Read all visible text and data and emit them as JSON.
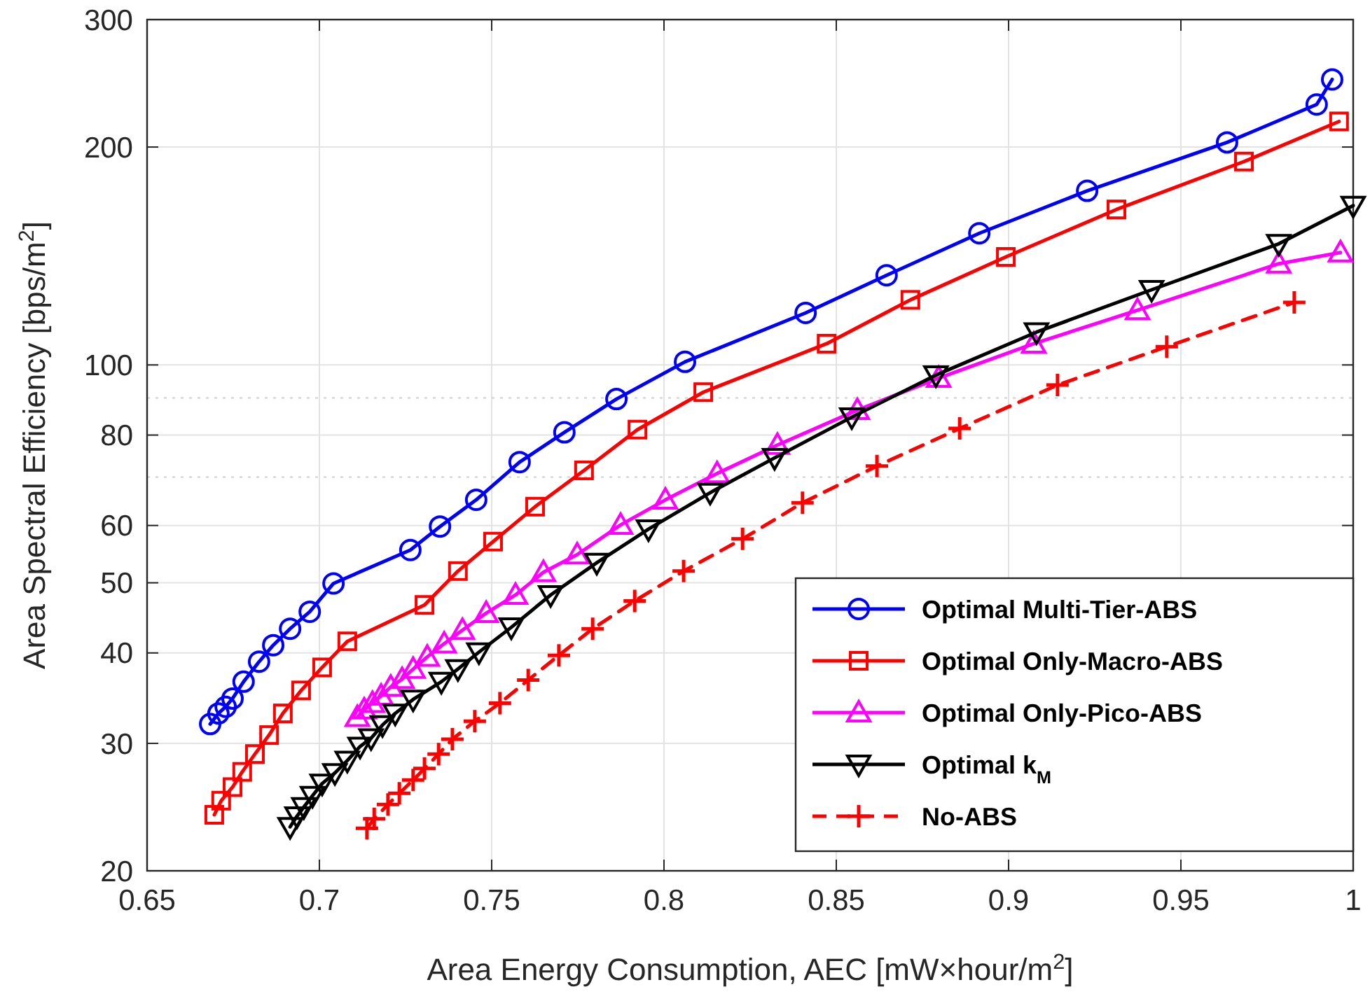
{
  "chart_data": {
    "type": "line",
    "xlabel": "Area Energy Consumption, AEC [mW×hour/m$^{2}$]",
    "ylabel": "Area Spectral Efficiency [bps/m$^{2}$]",
    "xlim": [
      0.65,
      1
    ],
    "xticks": [
      0.65,
      0.7,
      0.75,
      0.8,
      0.85,
      0.9,
      0.95,
      1
    ],
    "ylim": [
      20,
      300
    ],
    "yticks": [
      20,
      30,
      40,
      50,
      60,
      80,
      100,
      200,
      300
    ],
    "log": "y",
    "grid": true,
    "legend": "bottom right",
    "line_style": "solid",
    "ref_lines": [
      {
        "axis": "y",
        "value": 70,
        "color": "#d0d0d0",
        "line_style": "dotted"
      },
      {
        "axis": "y",
        "value": 90,
        "color": "#d0d0d0",
        "line_style": "dotted"
      }
    ],
    "series": [
      {
        "name": "Optimal Multi-Tier-ABS",
        "color": "#0000ff",
        "marker": "circle",
        "x": [
          0.6683,
          0.6707,
          0.6728,
          0.6748,
          0.678,
          0.6825,
          0.6866,
          0.6915,
          0.6972,
          0.7041,
          0.7264,
          0.735,
          0.7455,
          0.7581,
          0.7711,
          0.7862,
          0.8061,
          0.8411,
          0.8646,
          0.8915,
          0.9228,
          0.9634,
          0.9894,
          0.9939
        ],
        "values": [
          31.9,
          33.0,
          33.7,
          34.6,
          36.5,
          38.9,
          41.0,
          43.2,
          45.6,
          49.9,
          55.5,
          59.8,
          65.1,
          73.4,
          80.7,
          89.7,
          101,
          118,
          133,
          152,
          174,
          203,
          229,
          248
        ]
      },
      {
        "name": "Optimal Only-Macro-ABS",
        "color": "#ff0000",
        "marker": "square",
        "x": [
          0.6695,
          0.6715,
          0.6748,
          0.6776,
          0.6813,
          0.6854,
          0.6894,
          0.6947,
          0.7008,
          0.7081,
          0.7305,
          0.7402,
          0.7504,
          0.7626,
          0.7768,
          0.7923,
          0.8114,
          0.8472,
          0.8715,
          0.8992,
          0.9313,
          0.9683,
          0.9959
        ],
        "values": [
          23.9,
          25.0,
          26.1,
          27.4,
          29.0,
          30.8,
          33.0,
          35.5,
          38.2,
          41.5,
          46.6,
          51.9,
          57.0,
          63.7,
          71.5,
          81.4,
          91.7,
          107,
          123,
          141,
          164,
          191,
          217
        ]
      },
      {
        "name": "Optimal Only-Pico-ABS",
        "color": "#ff00ff",
        "marker": "triangle",
        "x": [
          0.711,
          0.713,
          0.7154,
          0.7179,
          0.7207,
          0.724,
          0.7272,
          0.7313,
          0.7362,
          0.7415,
          0.7484,
          0.7569,
          0.765,
          0.7748,
          0.7874,
          0.8004,
          0.8154,
          0.8329,
          0.8561,
          0.8797,
          0.9073,
          0.9374,
          0.9784,
          0.9963
        ],
        "values": [
          32.6,
          33.4,
          34.1,
          34.9,
          35.9,
          36.8,
          38.0,
          39.5,
          41.2,
          43.0,
          45.4,
          48.1,
          51.7,
          54.7,
          60.1,
          65.1,
          70.8,
          77.5,
          86.6,
          95.9,
          107,
          119,
          138,
          143
        ]
      },
      {
        "name": "Optimal k$_{M}$",
        "color": "#000000",
        "marker": "triangle-down",
        "x": [
          0.6915,
          0.6935,
          0.6955,
          0.698,
          0.7008,
          0.7045,
          0.7081,
          0.7118,
          0.715,
          0.7183,
          0.722,
          0.7272,
          0.7354,
          0.7402,
          0.7463,
          0.7557,
          0.7671,
          0.7805,
          0.7955,
          0.8134,
          0.8321,
          0.8545,
          0.8789,
          0.9081,
          0.9415,
          0.9784,
          1.0
        ],
        "values": [
          23.0,
          23.8,
          24.5,
          25.4,
          26.4,
          27.3,
          28.4,
          29.7,
          30.5,
          31.8,
          33.0,
          34.5,
          36.5,
          38.0,
          40.1,
          43.4,
          48.1,
          53.3,
          59.3,
          66.6,
          74.4,
          84.7,
          96.8,
          111,
          127,
          147,
          166
        ]
      },
      {
        "name": "No-ABS",
        "color": "#ff0000",
        "marker": "cross",
        "line_style": "dashed",
        "x": [
          0.7138,
          0.7159,
          0.7199,
          0.7232,
          0.7272,
          0.7305,
          0.7346,
          0.7386,
          0.7451,
          0.7524,
          0.7606,
          0.7695,
          0.7793,
          0.7915,
          0.8057,
          0.8228,
          0.8402,
          0.8618,
          0.8858,
          0.9142,
          0.9459,
          0.9829
        ],
        "values": [
          22.9,
          23.6,
          24.7,
          25.6,
          26.7,
          27.7,
          29.0,
          30.4,
          32.2,
          34.1,
          36.7,
          39.7,
          43.2,
          47.2,
          51.9,
          57.5,
          64.5,
          72.5,
          81.7,
          93.8,
          106,
          122
        ]
      }
    ]
  }
}
